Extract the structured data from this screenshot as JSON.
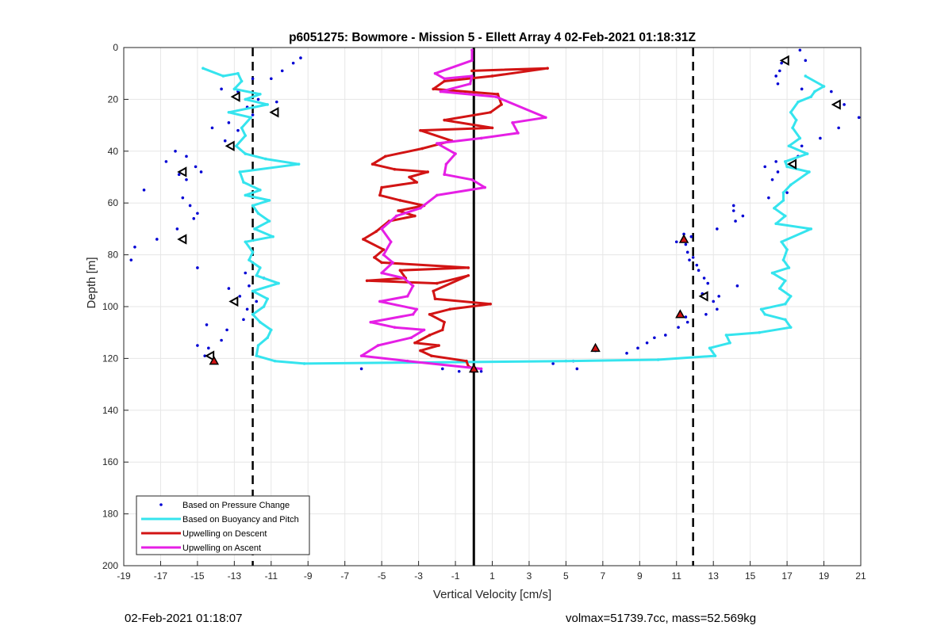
{
  "footer": {
    "timestamp": "02-Feb-2021 01:18:07",
    "vol_mass": "volmax=51739.7cc, mass=52.569kg"
  },
  "colors": {
    "pressure": "#0000d4",
    "buoyancy": "#35e4ee",
    "descent": "#d21414",
    "ascent": "#e51fe5",
    "grid": "#e6e6e6"
  },
  "chart_data": {
    "type": "scatter",
    "title": "p6051275: Bowmore - Mission 5 - Ellett Array 4 02-Feb-2021 01:18:31Z",
    "xlabel": "Vertical Velocity [cm/s]",
    "ylabel": "Depth [m]",
    "xlim": [
      -19,
      21
    ],
    "ylim": [
      0,
      200
    ],
    "y_reversed": true,
    "grid": true,
    "x_ticks": [
      -19,
      -17,
      -15,
      -13,
      -11,
      -9,
      -7,
      -5,
      -3,
      -1,
      1,
      3,
      5,
      7,
      9,
      11,
      13,
      15,
      17,
      19,
      21
    ],
    "y_ticks": [
      0,
      20,
      40,
      60,
      80,
      100,
      120,
      140,
      160,
      180,
      200
    ],
    "legend": {
      "position": "bottom-left",
      "entries": [
        {
          "label": "Based on Pressure Change",
          "series": "pressure"
        },
        {
          "label": "Based on Buoyancy and Pitch",
          "series": "buoyancy"
        },
        {
          "label": "Upwelling on Descent",
          "series": "descent"
        },
        {
          "label": "Upwelling on Ascent",
          "series": "ascent"
        }
      ]
    },
    "reference_lines": [
      {
        "x": -12,
        "style": "dashed"
      },
      {
        "x": 0,
        "style": "solid"
      },
      {
        "x": 11.9,
        "style": "dashed"
      }
    ],
    "series": [
      {
        "key": "pressure",
        "name": "Based on Pressure Change",
        "style": "points",
        "points": [
          [
            -9.4,
            4
          ],
          [
            -9.8,
            6
          ],
          [
            -10.4,
            9
          ],
          [
            -12.0,
            12
          ],
          [
            -11.0,
            12
          ],
          [
            -13.7,
            16
          ],
          [
            -12.8,
            17
          ],
          [
            -11.7,
            20
          ],
          [
            -10.7,
            21
          ],
          [
            -12.3,
            23
          ],
          [
            -12.0,
            26
          ],
          [
            -13.3,
            29
          ],
          [
            -14.2,
            31
          ],
          [
            -12.8,
            32
          ],
          [
            -13.5,
            36
          ],
          [
            -15.6,
            42
          ],
          [
            -16.2,
            40
          ],
          [
            -16.7,
            44
          ],
          [
            -15.1,
            46
          ],
          [
            -14.8,
            48
          ],
          [
            -15.6,
            51
          ],
          [
            -16.0,
            49
          ],
          [
            -17.9,
            55
          ],
          [
            -15.8,
            58
          ],
          [
            -15.4,
            61
          ],
          [
            -15.0,
            64
          ],
          [
            -15.2,
            66
          ],
          [
            -16.1,
            70
          ],
          [
            -17.2,
            74
          ],
          [
            -18.4,
            77
          ],
          [
            -18.6,
            82
          ],
          [
            -15.0,
            85
          ],
          [
            -12.4,
            87
          ],
          [
            -11.4,
            89
          ],
          [
            -12.2,
            92
          ],
          [
            -13.3,
            93
          ],
          [
            -12.7,
            96
          ],
          [
            -11.8,
            98
          ],
          [
            -12.3,
            101
          ],
          [
            -12.5,
            105
          ],
          [
            -14.5,
            107
          ],
          [
            -13.4,
            109
          ],
          [
            -13.7,
            113
          ],
          [
            -15.0,
            115
          ],
          [
            -14.4,
            116
          ],
          [
            -14.6,
            119
          ],
          [
            -6.1,
            124
          ],
          [
            -1.7,
            124
          ],
          [
            -0.8,
            125
          ],
          [
            0.4,
            125
          ],
          [
            4.3,
            122
          ],
          [
            5.4,
            121
          ],
          [
            5.6,
            124
          ],
          [
            6.6,
            117
          ],
          [
            8.3,
            118
          ],
          [
            8.9,
            116
          ],
          [
            9.4,
            114
          ],
          [
            9.8,
            112
          ],
          [
            10.4,
            111
          ],
          [
            11.1,
            108
          ],
          [
            11.6,
            106
          ],
          [
            11.5,
            104
          ],
          [
            11.2,
            103
          ],
          [
            12.6,
            103
          ],
          [
            13.2,
            101
          ],
          [
            13.0,
            98
          ],
          [
            13.3,
            96
          ],
          [
            12.4,
            95
          ],
          [
            14.3,
            92
          ],
          [
            12.7,
            91
          ],
          [
            12.5,
            89
          ],
          [
            12.2,
            86
          ],
          [
            12.1,
            84
          ],
          [
            11.7,
            82
          ],
          [
            11.9,
            81
          ],
          [
            11.6,
            79
          ],
          [
            11.5,
            76
          ],
          [
            11.0,
            75
          ],
          [
            11.8,
            73
          ],
          [
            11.4,
            72
          ],
          [
            13.2,
            70
          ],
          [
            14.2,
            67
          ],
          [
            14.6,
            65
          ],
          [
            14.1,
            63
          ],
          [
            14.1,
            61
          ],
          [
            16.0,
            58
          ],
          [
            17.0,
            56
          ],
          [
            16.2,
            51
          ],
          [
            16.5,
            48
          ],
          [
            15.8,
            46
          ],
          [
            16.4,
            44
          ],
          [
            17.6,
            42
          ],
          [
            18.8,
            35
          ],
          [
            17.8,
            38
          ],
          [
            19.8,
            31
          ],
          [
            20.9,
            27
          ],
          [
            20.1,
            22
          ],
          [
            19.4,
            17
          ],
          [
            17.8,
            16
          ],
          [
            16.5,
            14
          ],
          [
            16.4,
            11
          ],
          [
            16.6,
            9
          ],
          [
            16.7,
            6
          ],
          [
            18.0,
            5
          ],
          [
            17.7,
            1
          ]
        ]
      },
      {
        "key": "buoyancy",
        "name": "Based on Buoyancy and Pitch",
        "style": "line",
        "points": [
          [
            -14.7,
            8
          ],
          [
            -13.6,
            11
          ],
          [
            -12.8,
            10
          ],
          [
            -12.6,
            13
          ],
          [
            -13.0,
            16
          ],
          [
            -11.6,
            18
          ],
          [
            -12.4,
            20
          ],
          [
            -11.2,
            22
          ],
          [
            -13.3,
            25
          ],
          [
            -12.1,
            27
          ],
          [
            -12.6,
            31
          ],
          [
            -12.4,
            34
          ],
          [
            -12.9,
            38
          ],
          [
            -12.4,
            41
          ],
          [
            -11.3,
            43
          ],
          [
            -9.5,
            45
          ],
          [
            -12.7,
            48
          ],
          [
            -12.5,
            52
          ],
          [
            -11.6,
            55
          ],
          [
            -12.4,
            57
          ],
          [
            -11.1,
            59
          ],
          [
            -12.0,
            61
          ],
          [
            -11.7,
            64
          ],
          [
            -11.1,
            67
          ],
          [
            -11.9,
            70
          ],
          [
            -10.9,
            73
          ],
          [
            -12.4,
            75
          ],
          [
            -12.0,
            79
          ],
          [
            -12.2,
            82
          ],
          [
            -11.6,
            85
          ],
          [
            -11.8,
            88
          ],
          [
            -10.6,
            91
          ],
          [
            -12.0,
            94
          ],
          [
            -11.2,
            97
          ],
          [
            -11.4,
            100
          ],
          [
            -12.0,
            103
          ],
          [
            -11.6,
            106
          ],
          [
            -11.0,
            109
          ],
          [
            -11.2,
            112
          ],
          [
            -11.7,
            115
          ],
          [
            -11.8,
            119
          ],
          [
            -10.8,
            121
          ],
          [
            -9.2,
            122
          ],
          [
            5.0,
            121
          ],
          [
            10.0,
            120.5
          ],
          [
            13.1,
            119
          ],
          [
            12.8,
            116
          ],
          [
            13.9,
            114
          ],
          [
            13.7,
            111
          ],
          [
            15.5,
            110
          ],
          [
            17.2,
            108
          ],
          [
            16.9,
            105
          ],
          [
            15.8,
            103
          ],
          [
            15.6,
            101
          ],
          [
            16.9,
            99
          ],
          [
            17.2,
            96
          ],
          [
            16.6,
            93
          ],
          [
            16.9,
            90
          ],
          [
            16.2,
            87
          ],
          [
            17.1,
            85
          ],
          [
            16.8,
            82
          ],
          [
            17.0,
            78
          ],
          [
            16.7,
            75
          ],
          [
            18.3,
            70
          ],
          [
            16.4,
            68
          ],
          [
            16.9,
            65
          ],
          [
            16.3,
            62
          ],
          [
            16.8,
            59
          ],
          [
            16.8,
            56
          ],
          [
            17.2,
            53
          ],
          [
            18.2,
            48
          ],
          [
            17.0,
            46
          ],
          [
            16.9,
            44
          ],
          [
            18.1,
            41
          ],
          [
            17.1,
            38
          ],
          [
            17.7,
            35
          ],
          [
            17.3,
            31
          ],
          [
            17.5,
            28
          ],
          [
            17.2,
            25
          ],
          [
            17.6,
            21
          ],
          [
            18.3,
            19
          ],
          [
            18.5,
            17
          ],
          [
            19.0,
            15
          ],
          [
            18.0,
            11
          ]
        ]
      },
      {
        "key": "descent",
        "name": "Upwelling on Descent",
        "style": "line",
        "points": [
          [
            -0.1,
            9
          ],
          [
            4.0,
            8
          ],
          [
            1.0,
            11
          ],
          [
            -1.6,
            13
          ],
          [
            -2.2,
            16
          ],
          [
            1.3,
            18
          ],
          [
            1.5,
            22
          ],
          [
            0.9,
            25
          ],
          [
            -1.6,
            28
          ],
          [
            1.0,
            31
          ],
          [
            -2.9,
            32
          ],
          [
            -1.2,
            36
          ],
          [
            -2.8,
            39
          ],
          [
            -4.8,
            42
          ],
          [
            -5.5,
            45
          ],
          [
            -4.3,
            47
          ],
          [
            -2.5,
            48
          ],
          [
            -3.5,
            50
          ],
          [
            -3.1,
            52
          ],
          [
            -5.0,
            54
          ],
          [
            -5.1,
            57
          ],
          [
            -4.0,
            59
          ],
          [
            -2.7,
            61
          ],
          [
            -4.1,
            63
          ],
          [
            -3.2,
            65
          ],
          [
            -4.6,
            67
          ],
          [
            -5.3,
            71
          ],
          [
            -6.0,
            74
          ],
          [
            -4.9,
            78
          ],
          [
            -5.4,
            81
          ],
          [
            -5.0,
            83
          ],
          [
            -0.3,
            85
          ],
          [
            -4.0,
            86
          ],
          [
            -3.7,
            89
          ],
          [
            -5.8,
            90
          ],
          [
            -2.0,
            91
          ],
          [
            -0.3,
            88
          ],
          [
            -2.2,
            94
          ],
          [
            -2.1,
            97
          ],
          [
            0.9,
            99
          ],
          [
            -1.3,
            101
          ],
          [
            -2.4,
            103
          ],
          [
            -1.6,
            106
          ],
          [
            -1.7,
            109
          ],
          [
            -2.4,
            111
          ],
          [
            -3.2,
            114
          ],
          [
            -1.9,
            115
          ],
          [
            -2.9,
            117
          ],
          [
            -2.3,
            119
          ],
          [
            -0.4,
            121
          ],
          [
            -0.3,
            123
          ],
          [
            0.0,
            124
          ],
          [
            -0.1,
            125
          ]
        ]
      },
      {
        "key": "ascent",
        "name": "Upwelling on Ascent",
        "style": "line",
        "points": [
          [
            -0.1,
            1
          ],
          [
            -0.1,
            5
          ],
          [
            -2.1,
            10
          ],
          [
            -1.6,
            12
          ],
          [
            -0.1,
            11
          ],
          [
            -0.2,
            14
          ],
          [
            -1.8,
            17
          ],
          [
            1.2,
            19
          ],
          [
            3.9,
            27
          ],
          [
            2.1,
            29
          ],
          [
            2.4,
            33
          ],
          [
            0.4,
            35
          ],
          [
            -2.0,
            37
          ],
          [
            -1.0,
            41
          ],
          [
            -1.5,
            45
          ],
          [
            -1.6,
            49
          ],
          [
            -0.1,
            51
          ],
          [
            0.6,
            54
          ],
          [
            -2.0,
            57
          ],
          [
            -2.9,
            62
          ],
          [
            -4.2,
            65
          ],
          [
            -5.0,
            70
          ],
          [
            -4.5,
            75
          ],
          [
            -4.9,
            80
          ],
          [
            -4.4,
            83
          ],
          [
            -5.0,
            87
          ],
          [
            -3.8,
            89
          ],
          [
            -3.3,
            92
          ],
          [
            -3.6,
            96
          ],
          [
            -5.1,
            98
          ],
          [
            -3.1,
            101
          ],
          [
            -3.3,
            103
          ],
          [
            -5.6,
            106
          ],
          [
            -4.3,
            108
          ],
          [
            -2.7,
            109
          ],
          [
            -3.4,
            112
          ],
          [
            -5.2,
            115
          ],
          [
            -6.1,
            119
          ],
          [
            -3.6,
            121
          ],
          [
            0.4,
            124
          ]
        ]
      }
    ],
    "markers": [
      {
        "shape": "triangle-left",
        "points": [
          [
            16.9,
            5
          ],
          [
            -12.9,
            19
          ],
          [
            19.7,
            22
          ],
          [
            -10.8,
            25
          ],
          [
            -13.2,
            38
          ],
          [
            -15.8,
            48
          ],
          [
            17.3,
            45
          ],
          [
            -15.8,
            74
          ],
          [
            -13.0,
            98
          ],
          [
            12.5,
            96
          ],
          [
            -14.3,
            119
          ]
        ]
      },
      {
        "shape": "triangle-filled",
        "points": [
          [
            11.4,
            74
          ],
          [
            11.2,
            103
          ],
          [
            6.6,
            116
          ],
          [
            0.0,
            124
          ],
          [
            -14.1,
            121
          ]
        ]
      }
    ]
  }
}
